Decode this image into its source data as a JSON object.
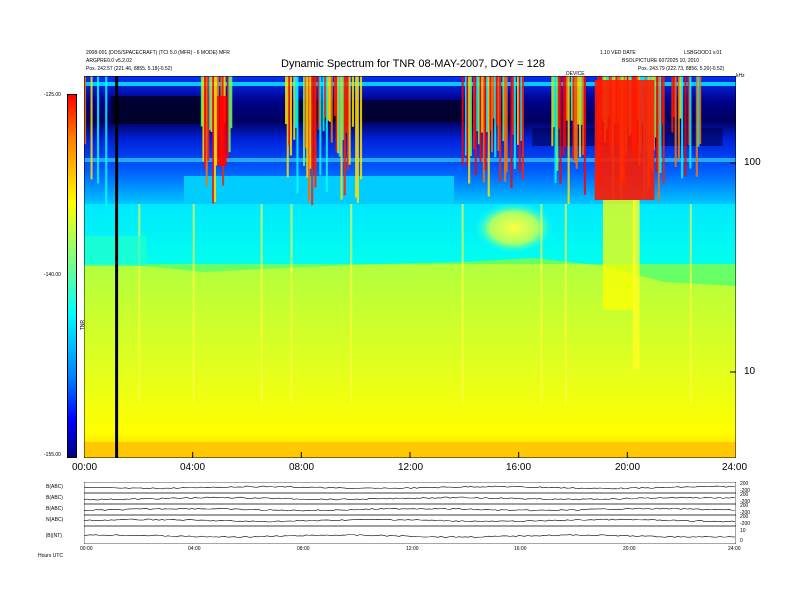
{
  "header": {
    "left_line1": "2008-001 (DOS/SPACECRAFT) (TCI 5.0 (MFR) - 6 MODE) MFR",
    "left_line2": "ARGPRE0.0 v5.2.02",
    "left_line3": "Pos. 242.57 (221.46, 8855, 5.18(-0.52)",
    "right_line1": "1.10 VED DATE",
    "right_line2": "LSBGOOD1 v.01",
    "right_line3": "BSOLPICTURE 6072025 10, 2010",
    "right_line4": "Pos. 243.79 (222.73, 8856, 5.20(-0.52)",
    "mid_label": "DEVICE",
    "corner_label": "kHz"
  },
  "title": "Dynamic Spectrum for TNR 08-MAY-2007, DOY = 128",
  "colorbar": {
    "labels": [
      "-125.00",
      "-140.00",
      "-155.00"
    ],
    "side_label": "TNR"
  },
  "main_xaxis": {
    "ticks": [
      "00:00",
      "04:00",
      "08:00",
      "12:00",
      "16:00",
      "20:00",
      "24:00"
    ]
  },
  "main_yaxis": {
    "ticks": [
      "100",
      "10"
    ]
  },
  "panels": {
    "labels": [
      "B(ABC)",
      "B(ABC)",
      "B(ABC)",
      "N(ABC)",
      "|B|(NT)"
    ],
    "right_labels": [
      "200",
      "-200",
      "200",
      "-200",
      "200",
      "-200",
      "200",
      "-200",
      "10",
      "0"
    ],
    "footer_left": "Hours  UTC",
    "x_ticks": [
      "00:00",
      "04:00",
      "08:00",
      "12:00",
      "16:00",
      "20:00",
      "24:00"
    ]
  },
  "chart_data": {
    "type": "heatmap",
    "title": "Dynamic Spectrum for TNR 08-MAY-2007, DOY = 128",
    "xlabel": "",
    "ylabel": "",
    "x_range_hours": [
      0,
      24
    ],
    "y_scale": "log",
    "y_ticks": [
      10,
      100
    ],
    "color_range": [
      -155.0,
      -125.0
    ],
    "colormap": [
      "#00007f",
      "#0000ff",
      "#00ffff",
      "#ffff00",
      "#ff0000"
    ],
    "grid": false,
    "vertical_marker_hour": 1.2
  }
}
